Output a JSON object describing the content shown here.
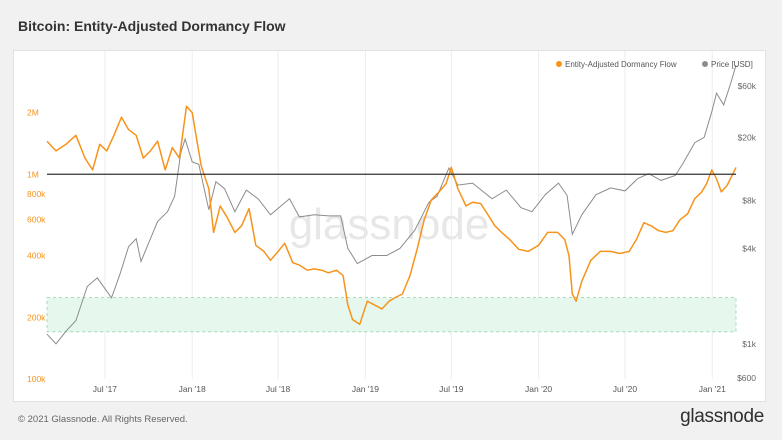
{
  "header": {
    "title": "Bitcoin: Entity-Adjusted Dormancy Flow"
  },
  "footer": {
    "copyright": "© 2021 Glassnode. All Rights Reserved.",
    "brand": "glassnode"
  },
  "watermark": "glassnode",
  "colors": {
    "dormancy": "#f7931a",
    "price": "#8c8c8c",
    "band_fill": "#e6f8ee",
    "band_border": "#8fd3a6",
    "threshold_line": "#333333"
  },
  "chart_data": {
    "type": "line",
    "title": "Bitcoin: Entity-Adjusted Dormancy Flow",
    "x_range": [
      "2017-03-01",
      "2021-02-20"
    ],
    "x_ticks": [
      {
        "date": "2017-07-01",
        "label": "Jul '17"
      },
      {
        "date": "2018-01-01",
        "label": "Jan '18"
      },
      {
        "date": "2018-07-01",
        "label": "Jul '18"
      },
      {
        "date": "2019-01-01",
        "label": "Jan '19"
      },
      {
        "date": "2019-07-01",
        "label": "Jul '19"
      },
      {
        "date": "2020-01-01",
        "label": "Jan '20"
      },
      {
        "date": "2020-07-01",
        "label": "Jul '20"
      },
      {
        "date": "2021-01-01",
        "label": "Jan '21"
      }
    ],
    "left_axis": {
      "scale": "log",
      "range": [
        100000,
        4000000
      ],
      "ticks": [
        {
          "value": 100000,
          "label": "100k"
        },
        {
          "value": 200000,
          "label": "200k"
        },
        {
          "value": 400000,
          "label": "400k"
        },
        {
          "value": 600000,
          "label": "600k"
        },
        {
          "value": 800000,
          "label": "800k"
        },
        {
          "value": 1000000,
          "label": "1M"
        },
        {
          "value": 2000000,
          "label": "2M"
        }
      ]
    },
    "right_axis": {
      "scale": "log",
      "range": [
        600,
        70000
      ],
      "ticks": [
        {
          "value": 600,
          "label": "$600"
        },
        {
          "value": 1000,
          "label": "$1k"
        },
        {
          "value": 4000,
          "label": "$4k"
        },
        {
          "value": 8000,
          "label": "$8k"
        },
        {
          "value": 20000,
          "label": "$20k"
        },
        {
          "value": 60000,
          "label": "$60k"
        }
      ]
    },
    "threshold": 1000000,
    "band": [
      170000,
      250000
    ],
    "legend": {
      "placement": "top-right"
    },
    "series": [
      {
        "name": "Entity-Adjusted Dormancy Flow",
        "axis": "left",
        "points": [
          [
            "2017-03-01",
            1450000
          ],
          [
            "2017-03-20",
            1300000
          ],
          [
            "2017-04-10",
            1400000
          ],
          [
            "2017-05-01",
            1550000
          ],
          [
            "2017-05-20",
            1200000
          ],
          [
            "2017-06-05",
            1050000
          ],
          [
            "2017-06-20",
            1400000
          ],
          [
            "2017-07-05",
            1300000
          ],
          [
            "2017-07-20",
            1550000
          ],
          [
            "2017-08-05",
            1900000
          ],
          [
            "2017-08-20",
            1650000
          ],
          [
            "2017-09-05",
            1550000
          ],
          [
            "2017-09-20",
            1200000
          ],
          [
            "2017-10-05",
            1300000
          ],
          [
            "2017-10-20",
            1450000
          ],
          [
            "2017-11-05",
            1050000
          ],
          [
            "2017-11-20",
            1350000
          ],
          [
            "2017-12-05",
            1200000
          ],
          [
            "2017-12-20",
            2150000
          ],
          [
            "2018-01-01",
            2000000
          ],
          [
            "2018-01-10",
            1500000
          ],
          [
            "2018-01-20",
            1100000
          ],
          [
            "2018-02-05",
            850000
          ],
          [
            "2018-02-15",
            520000
          ],
          [
            "2018-03-01",
            700000
          ],
          [
            "2018-03-15",
            620000
          ],
          [
            "2018-04-01",
            520000
          ],
          [
            "2018-04-15",
            560000
          ],
          [
            "2018-05-01",
            680000
          ],
          [
            "2018-05-15",
            450000
          ],
          [
            "2018-06-01",
            420000
          ],
          [
            "2018-06-15",
            380000
          ],
          [
            "2018-07-01",
            420000
          ],
          [
            "2018-07-15",
            460000
          ],
          [
            "2018-08-01",
            370000
          ],
          [
            "2018-08-15",
            360000
          ],
          [
            "2018-09-01",
            340000
          ],
          [
            "2018-09-15",
            345000
          ],
          [
            "2018-10-01",
            340000
          ],
          [
            "2018-10-15",
            330000
          ],
          [
            "2018-11-01",
            340000
          ],
          [
            "2018-11-15",
            320000
          ],
          [
            "2018-11-25",
            230000
          ],
          [
            "2018-12-05",
            195000
          ],
          [
            "2018-12-20",
            185000
          ],
          [
            "2019-01-05",
            240000
          ],
          [
            "2019-01-20",
            230000
          ],
          [
            "2019-02-05",
            220000
          ],
          [
            "2019-02-20",
            240000
          ],
          [
            "2019-03-05",
            250000
          ],
          [
            "2019-03-20",
            260000
          ],
          [
            "2019-04-05",
            320000
          ],
          [
            "2019-04-20",
            430000
          ],
          [
            "2019-05-05",
            600000
          ],
          [
            "2019-05-20",
            750000
          ],
          [
            "2019-06-05",
            820000
          ],
          [
            "2019-06-20",
            900000
          ],
          [
            "2019-07-01",
            1080000
          ],
          [
            "2019-07-15",
            850000
          ],
          [
            "2019-08-01",
            700000
          ],
          [
            "2019-08-15",
            730000
          ],
          [
            "2019-09-01",
            720000
          ],
          [
            "2019-09-15",
            640000
          ],
          [
            "2019-10-01",
            560000
          ],
          [
            "2019-10-15",
            520000
          ],
          [
            "2019-11-01",
            480000
          ],
          [
            "2019-11-20",
            430000
          ],
          [
            "2019-12-10",
            420000
          ],
          [
            "2020-01-01",
            450000
          ],
          [
            "2020-01-20",
            520000
          ],
          [
            "2020-02-10",
            520000
          ],
          [
            "2020-02-25",
            480000
          ],
          [
            "2020-03-05",
            400000
          ],
          [
            "2020-03-12",
            260000
          ],
          [
            "2020-03-20",
            240000
          ],
          [
            "2020-04-01",
            300000
          ],
          [
            "2020-04-20",
            380000
          ],
          [
            "2020-05-10",
            420000
          ],
          [
            "2020-06-01",
            420000
          ],
          [
            "2020-06-20",
            410000
          ],
          [
            "2020-07-10",
            420000
          ],
          [
            "2020-07-25",
            480000
          ],
          [
            "2020-08-10",
            580000
          ],
          [
            "2020-08-25",
            560000
          ],
          [
            "2020-09-10",
            530000
          ],
          [
            "2020-09-25",
            520000
          ],
          [
            "2020-10-10",
            530000
          ],
          [
            "2020-10-25",
            600000
          ],
          [
            "2020-11-10",
            640000
          ],
          [
            "2020-11-25",
            760000
          ],
          [
            "2020-12-10",
            820000
          ],
          [
            "2020-12-20",
            900000
          ],
          [
            "2020-12-31",
            1050000
          ],
          [
            "2021-01-10",
            950000
          ],
          [
            "2021-01-20",
            820000
          ],
          [
            "2021-02-01",
            880000
          ],
          [
            "2021-02-10",
            970000
          ],
          [
            "2021-02-20",
            1080000
          ]
        ]
      },
      {
        "name": "Price [USD]",
        "axis": "right",
        "points": [
          [
            "2017-03-01",
            1150
          ],
          [
            "2017-03-20",
            1000
          ],
          [
            "2017-04-10",
            1200
          ],
          [
            "2017-05-01",
            1400
          ],
          [
            "2017-05-25",
            2300
          ],
          [
            "2017-06-15",
            2600
          ],
          [
            "2017-07-15",
            1950
          ],
          [
            "2017-08-01",
            2700
          ],
          [
            "2017-08-20",
            4100
          ],
          [
            "2017-09-05",
            4600
          ],
          [
            "2017-09-15",
            3300
          ],
          [
            "2017-10-01",
            4300
          ],
          [
            "2017-10-20",
            5900
          ],
          [
            "2017-11-10",
            6800
          ],
          [
            "2017-11-25",
            8500
          ],
          [
            "2017-12-08",
            16000
          ],
          [
            "2017-12-17",
            19500
          ],
          [
            "2018-01-01",
            14000
          ],
          [
            "2018-01-15",
            13500
          ],
          [
            "2018-02-05",
            7000
          ],
          [
            "2018-02-20",
            10500
          ],
          [
            "2018-03-10",
            9500
          ],
          [
            "2018-04-01",
            6800
          ],
          [
            "2018-04-25",
            9300
          ],
          [
            "2018-05-20",
            8200
          ],
          [
            "2018-06-15",
            6500
          ],
          [
            "2018-07-25",
            8200
          ],
          [
            "2018-08-15",
            6300
          ],
          [
            "2018-09-15",
            6500
          ],
          [
            "2018-10-15",
            6400
          ],
          [
            "2018-11-10",
            6400
          ],
          [
            "2018-11-25",
            4000
          ],
          [
            "2018-12-15",
            3200
          ],
          [
            "2019-01-15",
            3600
          ],
          [
            "2019-02-15",
            3600
          ],
          [
            "2019-03-15",
            4000
          ],
          [
            "2019-04-15",
            5200
          ],
          [
            "2019-05-15",
            7800
          ],
          [
            "2019-06-01",
            8500
          ],
          [
            "2019-06-26",
            12800
          ],
          [
            "2019-07-15",
            10000
          ],
          [
            "2019-08-15",
            10300
          ],
          [
            "2019-09-25",
            8200
          ],
          [
            "2019-10-25",
            9300
          ],
          [
            "2019-11-25",
            7200
          ],
          [
            "2019-12-18",
            6800
          ],
          [
            "2020-01-15",
            8700
          ],
          [
            "2020-02-12",
            10300
          ],
          [
            "2020-03-01",
            8600
          ],
          [
            "2020-03-12",
            4900
          ],
          [
            "2020-04-01",
            6500
          ],
          [
            "2020-05-01",
            8700
          ],
          [
            "2020-06-01",
            9600
          ],
          [
            "2020-07-01",
            9200
          ],
          [
            "2020-07-28",
            11000
          ],
          [
            "2020-08-20",
            11800
          ],
          [
            "2020-09-15",
            10700
          ],
          [
            "2020-10-15",
            11500
          ],
          [
            "2020-11-01",
            13800
          ],
          [
            "2020-11-25",
            18500
          ],
          [
            "2020-12-15",
            20000
          ],
          [
            "2020-12-31",
            29000
          ],
          [
            "2021-01-10",
            38000
          ],
          [
            "2021-01-25",
            32000
          ],
          [
            "2021-02-10",
            45000
          ],
          [
            "2021-02-20",
            57000
          ]
        ]
      }
    ]
  }
}
